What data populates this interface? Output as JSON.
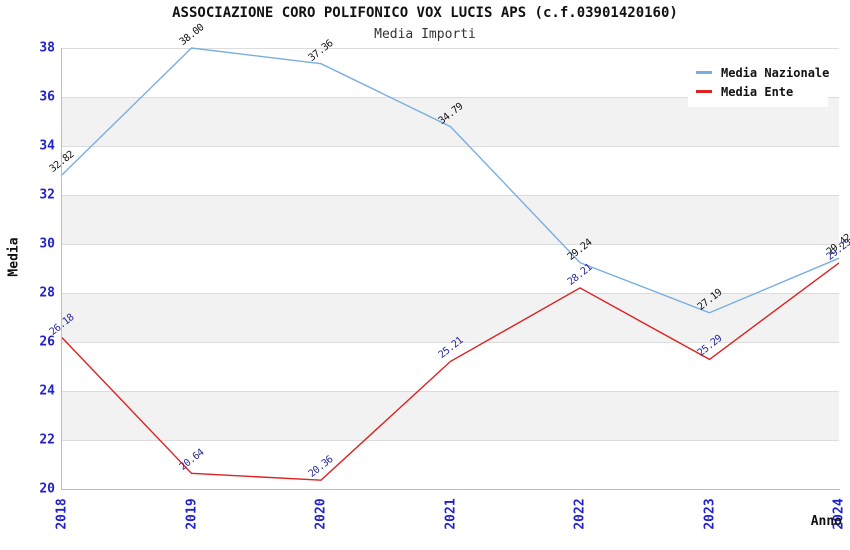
{
  "chart_data": {
    "type": "line",
    "title": "ASSOCIAZIONE CORO POLIFONICO VOX LUCIS APS (c.f.03901420160)",
    "subtitle": "Media Importi",
    "xlabel": "Anno",
    "ylabel": "Media",
    "x": [
      2018,
      2019,
      2020,
      2021,
      2022,
      2023,
      2024
    ],
    "series": [
      {
        "name": "Media Nazionale",
        "color": "#79aee3",
        "label_color": "#111111",
        "values": [
          32.82,
          38.0,
          37.36,
          34.79,
          29.24,
          27.19,
          29.42
        ]
      },
      {
        "name": "Media Ente",
        "color": "#dd2222",
        "label_color": "#282899",
        "values": [
          26.18,
          20.64,
          20.36,
          25.21,
          28.21,
          25.29,
          29.23
        ]
      }
    ],
    "ylim": [
      20,
      38
    ],
    "ytick_step": 2,
    "yticks": [
      20,
      22,
      24,
      26,
      28,
      30,
      32,
      34,
      36,
      38
    ],
    "grid": "horizontal alternating bands",
    "legend_position": "top-right"
  },
  "style_colors": {
    "tick_label_blue": "#2222cc",
    "band_gray": "#f2f2f2",
    "gridline_gray": "#dcdcdc",
    "axis_gray": "#bdbdbd",
    "background": "#ffffff"
  }
}
